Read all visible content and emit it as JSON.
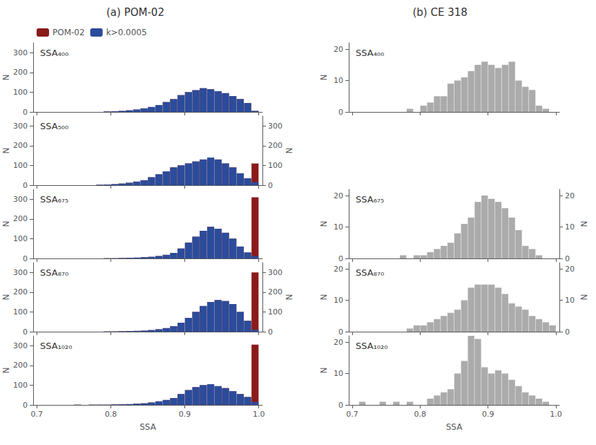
{
  "chart_data": [
    {
      "type": "bar",
      "title": "(a) POM-02",
      "annotation": "SSA₄₀₀",
      "bins": [
        0.7,
        0.71,
        0.72,
        0.73,
        0.74,
        0.75,
        0.76,
        0.77,
        0.78,
        0.79,
        0.8,
        0.81,
        0.82,
        0.83,
        0.84,
        0.85,
        0.86,
        0.87,
        0.88,
        0.89,
        0.9,
        0.91,
        0.92,
        0.93,
        0.94,
        0.95,
        0.96,
        0.97,
        0.98,
        0.99,
        1.0
      ],
      "series": [
        {
          "name": "POM-02",
          "color": "#8B1A1A",
          "values": [
            0,
            0,
            0,
            0,
            0,
            0,
            0,
            0,
            0,
            2,
            3,
            5,
            8,
            12,
            18,
            25,
            35,
            50,
            65,
            85,
            100,
            110,
            120,
            115,
            105,
            95,
            80,
            65,
            45,
            5
          ]
        },
        {
          "name": "k>0.0005",
          "color": "#2B4C9B",
          "values": [
            0,
            0,
            0,
            0,
            0,
            0,
            0,
            0,
            0,
            2,
            3,
            5,
            8,
            12,
            18,
            25,
            35,
            50,
            65,
            85,
            100,
            110,
            120,
            115,
            105,
            95,
            80,
            65,
            45,
            5
          ]
        }
      ],
      "xlim": [
        0.695,
        1.005
      ],
      "xticks": [
        0.7,
        0.8,
        0.9,
        {
          "value": 1,
          "label": "1.0"
        }
      ],
      "ylabel": "N",
      "ylim": [
        0,
        350
      ],
      "yticks": [
        0,
        100,
        200,
        300
      ],
      "grid": false,
      "legend": "upper left",
      "tick_labels": "y"
    },
    {
      "type": "bar",
      "annotation": "SSA₅₀₀",
      "bins": [
        0.7,
        0.71,
        0.72,
        0.73,
        0.74,
        0.75,
        0.76,
        0.77,
        0.78,
        0.79,
        0.8,
        0.81,
        0.82,
        0.83,
        0.84,
        0.85,
        0.86,
        0.87,
        0.88,
        0.89,
        0.9,
        0.91,
        0.92,
        0.93,
        0.94,
        0.95,
        0.96,
        0.97,
        0.98,
        0.99,
        1.0
      ],
      "series": [
        {
          "name": "POM-02",
          "color": "#8B1A1A",
          "values": [
            0,
            0,
            0,
            0,
            0,
            0,
            0,
            0,
            2,
            3,
            5,
            8,
            12,
            18,
            25,
            40,
            55,
            70,
            90,
            100,
            110,
            120,
            130,
            140,
            130,
            110,
            90,
            60,
            35,
            110
          ]
        },
        {
          "name": "k>0.0005",
          "color": "#2B4C9B",
          "values": [
            0,
            0,
            0,
            0,
            0,
            0,
            0,
            0,
            2,
            3,
            5,
            8,
            12,
            18,
            25,
            40,
            55,
            70,
            90,
            100,
            110,
            120,
            130,
            140,
            130,
            110,
            90,
            60,
            35,
            15
          ]
        }
      ],
      "xlim": [
        0.695,
        1.005
      ],
      "xticks": [
        0.7,
        0.8,
        0.9,
        {
          "value": 1,
          "label": "1.0"
        }
      ],
      "ylabel": "N",
      "ylim": [
        0,
        350
      ],
      "yticks": [
        0,
        100,
        200,
        300
      ],
      "y2label": "N",
      "y2lim": [
        0,
        350
      ],
      "y2ticks": [
        0,
        100,
        200,
        300
      ],
      "grid": false,
      "tick_labels": "y"
    },
    {
      "type": "bar",
      "annotation": "SSA₆₇₅",
      "bins": [
        0.7,
        0.71,
        0.72,
        0.73,
        0.74,
        0.75,
        0.76,
        0.77,
        0.78,
        0.79,
        0.8,
        0.81,
        0.82,
        0.83,
        0.84,
        0.85,
        0.86,
        0.87,
        0.88,
        0.89,
        0.9,
        0.91,
        0.92,
        0.93,
        0.94,
        0.95,
        0.96,
        0.97,
        0.98,
        0.99,
        1.0
      ],
      "series": [
        {
          "name": "POM-02",
          "color": "#8B1A1A",
          "values": [
            0,
            0,
            0,
            0,
            0,
            0,
            0,
            0,
            0,
            1,
            1,
            2,
            3,
            4,
            6,
            8,
            12,
            18,
            28,
            50,
            80,
            110,
            140,
            160,
            150,
            130,
            100,
            60,
            30,
            310
          ]
        },
        {
          "name": "k>0.0005",
          "color": "#2B4C9B",
          "values": [
            0,
            0,
            0,
            0,
            0,
            0,
            0,
            0,
            0,
            1,
            1,
            2,
            3,
            4,
            6,
            8,
            12,
            18,
            28,
            50,
            80,
            110,
            140,
            160,
            150,
            130,
            100,
            60,
            30,
            12
          ]
        }
      ],
      "xlim": [
        0.695,
        1.005
      ],
      "xticks": [
        0.7,
        0.8,
        0.9,
        {
          "value": 1,
          "label": "1.0"
        }
      ],
      "ylabel": "N",
      "ylim": [
        0,
        350
      ],
      "yticks": [
        0,
        100,
        200,
        300
      ],
      "grid": false,
      "tick_labels": "y"
    },
    {
      "type": "bar",
      "annotation": "SSA₈₇₀",
      "bins": [
        0.7,
        0.71,
        0.72,
        0.73,
        0.74,
        0.75,
        0.76,
        0.77,
        0.78,
        0.79,
        0.8,
        0.81,
        0.82,
        0.83,
        0.84,
        0.85,
        0.86,
        0.87,
        0.88,
        0.89,
        0.9,
        0.91,
        0.92,
        0.93,
        0.94,
        0.95,
        0.96,
        0.97,
        0.98,
        0.99,
        1.0
      ],
      "series": [
        {
          "name": "POM-02",
          "color": "#8B1A1A",
          "values": [
            0,
            0,
            0,
            0,
            0,
            0,
            0,
            0,
            0,
            1,
            1,
            2,
            3,
            4,
            5,
            8,
            12,
            18,
            28,
            45,
            70,
            100,
            130,
            150,
            160,
            155,
            140,
            100,
            55,
            300
          ]
        },
        {
          "name": "k>0.0005",
          "color": "#2B4C9B",
          "values": [
            0,
            0,
            0,
            0,
            0,
            0,
            0,
            0,
            0,
            1,
            1,
            2,
            3,
            4,
            5,
            8,
            12,
            18,
            28,
            45,
            70,
            100,
            130,
            150,
            160,
            155,
            140,
            100,
            55,
            10
          ]
        }
      ],
      "xlim": [
        0.695,
        1.005
      ],
      "xticks": [
        0.7,
        0.8,
        0.9,
        {
          "value": 1,
          "label": "1.0"
        }
      ],
      "ylabel": "N",
      "ylim": [
        0,
        350
      ],
      "yticks": [
        0,
        100,
        200,
        300
      ],
      "y2label": "N",
      "y2lim": [
        0,
        350
      ],
      "y2ticks": [
        0,
        100,
        200,
        300
      ],
      "grid": false,
      "tick_labels": "y"
    },
    {
      "type": "bar",
      "annotation": "SSA₁₀₂₀",
      "bins": [
        0.7,
        0.71,
        0.72,
        0.73,
        0.74,
        0.75,
        0.76,
        0.77,
        0.78,
        0.79,
        0.8,
        0.81,
        0.82,
        0.83,
        0.84,
        0.85,
        0.86,
        0.87,
        0.88,
        0.89,
        0.9,
        0.91,
        0.92,
        0.93,
        0.94,
        0.95,
        0.96,
        0.97,
        0.98,
        0.99,
        1.0
      ],
      "series": [
        {
          "name": "POM-02",
          "color": "#8B1A1A",
          "values": [
            0,
            0,
            0,
            0,
            0,
            1,
            0,
            1,
            1,
            1,
            2,
            3,
            4,
            6,
            8,
            12,
            18,
            25,
            35,
            55,
            75,
            90,
            100,
            105,
            95,
            85,
            70,
            55,
            40,
            305
          ]
        },
        {
          "name": "k>0.0005",
          "color": "#2B4C9B",
          "values": [
            0,
            0,
            0,
            0,
            0,
            1,
            0,
            1,
            1,
            1,
            2,
            3,
            4,
            6,
            8,
            12,
            18,
            25,
            35,
            55,
            75,
            90,
            100,
            105,
            95,
            85,
            70,
            55,
            40,
            15
          ]
        }
      ],
      "xlabel": "SSA",
      "xlim": [
        0.695,
        1.005
      ],
      "xticks": [
        0.7,
        0.8,
        0.9,
        {
          "value": 1,
          "label": "1.0"
        }
      ],
      "ylabel": "N",
      "ylim": [
        0,
        350
      ],
      "yticks": [
        0,
        100,
        200,
        300
      ],
      "grid": false
    },
    {
      "type": "bar",
      "title": "(b) CE 318",
      "annotation": "SSA₄₀₀",
      "bins": [
        0.7,
        0.71,
        0.72,
        0.73,
        0.74,
        0.75,
        0.76,
        0.77,
        0.78,
        0.79,
        0.8,
        0.81,
        0.82,
        0.83,
        0.84,
        0.85,
        0.86,
        0.87,
        0.88,
        0.89,
        0.9,
        0.91,
        0.92,
        0.93,
        0.94,
        0.95,
        0.96,
        0.97,
        0.98,
        0.99,
        1.0
      ],
      "series": [
        {
          "color": "#ABABAB",
          "values": [
            0,
            0,
            0,
            0,
            0,
            0,
            0,
            0,
            1,
            0,
            2,
            3,
            5,
            5,
            9,
            10,
            11,
            13,
            15,
            16,
            15,
            14,
            15,
            16,
            10,
            8,
            7,
            2,
            1,
            0
          ]
        }
      ],
      "xlim": [
        0.695,
        1.005
      ],
      "xticks": [
        0.7,
        0.8,
        0.9,
        {
          "value": 1,
          "label": "1.0"
        }
      ],
      "ylabel": "N",
      "ylim": [
        0,
        22
      ],
      "yticks": [
        0,
        10,
        20
      ],
      "grid": false,
      "tick_labels": "y"
    },
    {
      "type": "bar",
      "annotation": "SSA₆₇₅",
      "bins": [
        0.7,
        0.71,
        0.72,
        0.73,
        0.74,
        0.75,
        0.76,
        0.77,
        0.78,
        0.79,
        0.8,
        0.81,
        0.82,
        0.83,
        0.84,
        0.85,
        0.86,
        0.87,
        0.88,
        0.89,
        0.9,
        0.91,
        0.92,
        0.93,
        0.94,
        0.95,
        0.96,
        0.97,
        0.98,
        0.99,
        1.0
      ],
      "series": [
        {
          "color": "#ABABAB",
          "values": [
            0,
            0,
            0,
            0,
            0,
            0,
            0,
            1,
            0,
            1,
            1,
            2,
            3,
            4,
            5,
            8,
            11,
            13,
            18,
            20,
            19,
            18,
            16,
            13,
            9,
            4,
            3,
            1,
            0,
            0
          ]
        }
      ],
      "xlim": [
        0.695,
        1.005
      ],
      "xticks": [
        0.7,
        0.8,
        0.9,
        {
          "value": 1,
          "label": "1.0"
        }
      ],
      "ylabel": "N",
      "ylim": [
        0,
        22
      ],
      "yticks": [
        0,
        10,
        20
      ],
      "y2label": "N",
      "y2lim": [
        0,
        22
      ],
      "y2ticks": [
        0,
        10,
        20
      ],
      "grid": false,
      "tick_labels": "y"
    },
    {
      "type": "bar",
      "annotation": "SSA₈₇₀",
      "bins": [
        0.7,
        0.71,
        0.72,
        0.73,
        0.74,
        0.75,
        0.76,
        0.77,
        0.78,
        0.79,
        0.8,
        0.81,
        0.82,
        0.83,
        0.84,
        0.85,
        0.86,
        0.87,
        0.88,
        0.89,
        0.9,
        0.91,
        0.92,
        0.93,
        0.94,
        0.95,
        0.96,
        0.97,
        0.98,
        0.99,
        1.0
      ],
      "series": [
        {
          "color": "#ABABAB",
          "values": [
            0,
            0,
            0,
            0,
            0,
            0,
            0,
            0,
            1,
            2,
            2,
            3,
            4,
            5,
            6,
            7,
            10,
            14,
            15,
            15,
            15,
            14,
            12,
            9,
            8,
            7,
            5,
            4,
            3,
            2
          ]
        }
      ],
      "xlim": [
        0.695,
        1.005
      ],
      "xticks": [
        0.7,
        0.8,
        0.9,
        {
          "value": 1,
          "label": "1.0"
        }
      ],
      "ylabel": "N",
      "ylim": [
        0,
        22
      ],
      "yticks": [
        0,
        10,
        20
      ],
      "y2label": "N",
      "y2lim": [
        0,
        22
      ],
      "y2ticks": [
        0,
        10,
        20
      ],
      "grid": false,
      "tick_labels": "y"
    },
    {
      "type": "bar",
      "annotation": "SSA₁₀₂₀",
      "bins": [
        0.7,
        0.71,
        0.72,
        0.73,
        0.74,
        0.75,
        0.76,
        0.77,
        0.78,
        0.79,
        0.8,
        0.81,
        0.82,
        0.83,
        0.84,
        0.85,
        0.86,
        0.87,
        0.88,
        0.89,
        0.9,
        0.91,
        0.92,
        0.93,
        0.94,
        0.95,
        0.96,
        0.97,
        0.98,
        0.99,
        1.0
      ],
      "series": [
        {
          "color": "#ABABAB",
          "values": [
            0,
            1,
            0,
            0,
            1,
            0,
            1,
            0,
            1,
            0,
            0,
            2,
            3,
            4,
            5,
            10,
            14,
            22,
            21,
            12,
            10,
            11,
            10,
            8,
            6,
            4,
            3,
            2,
            1,
            0
          ]
        }
      ],
      "xlabel": "SSA",
      "xlim": [
        0.695,
        1.005
      ],
      "xticks": [
        0.7,
        0.8,
        0.9,
        {
          "value": 1,
          "label": "1.0"
        }
      ],
      "ylabel": "N",
      "ylim": [
        0,
        22
      ],
      "yticks": [
        0,
        10,
        20
      ],
      "grid": false
    }
  ]
}
